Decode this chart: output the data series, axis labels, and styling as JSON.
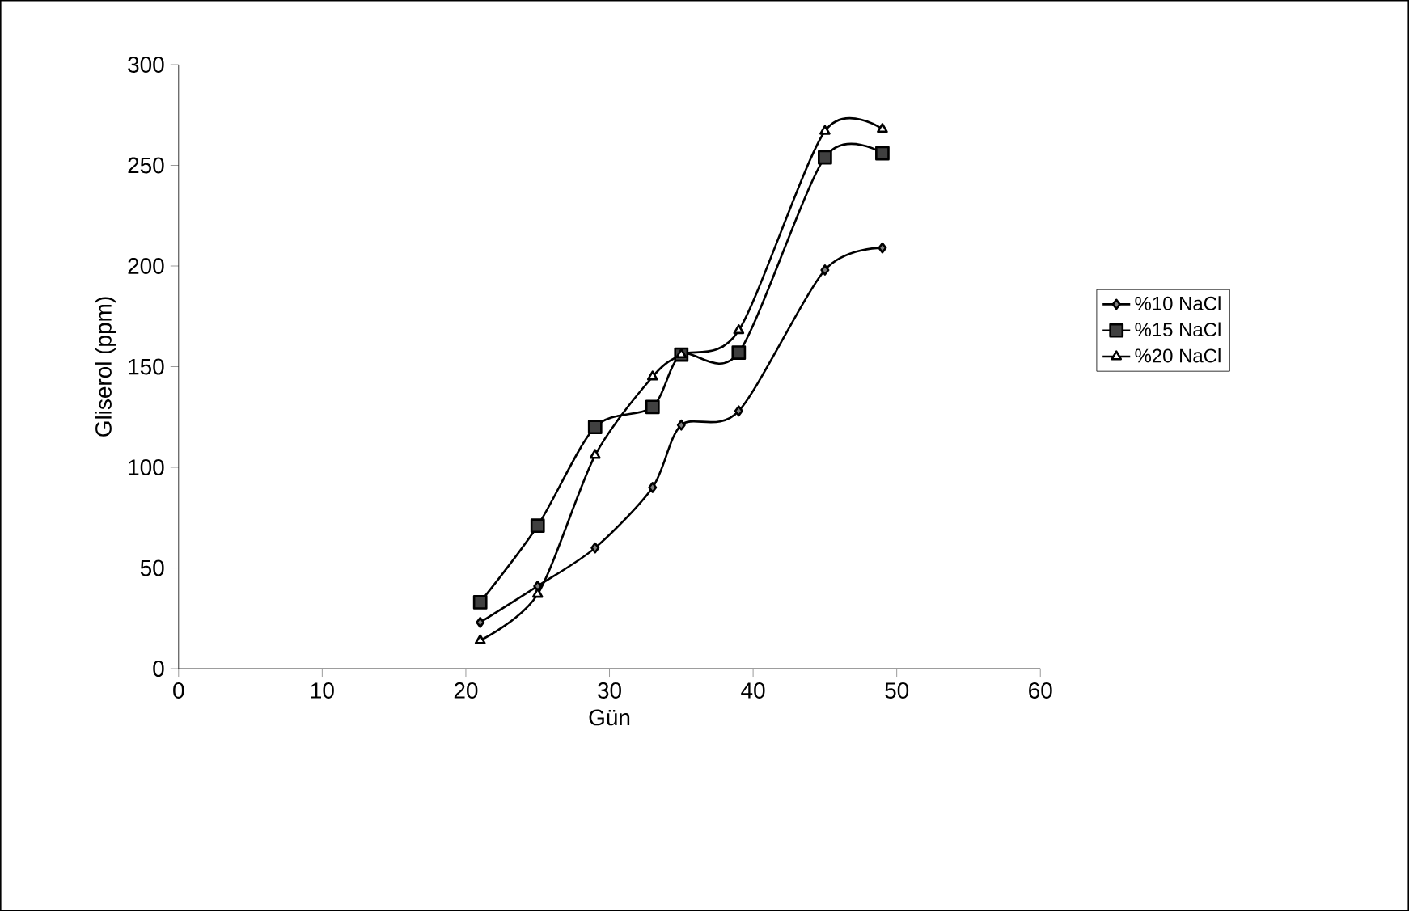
{
  "chart_data": {
    "type": "line",
    "xlabel": "Gün",
    "ylabel": "Gliserol (ppm)",
    "x": [
      21,
      25,
      29,
      33,
      35,
      39,
      45,
      49
    ],
    "series": [
      {
        "name": "%10 NaCl",
        "color": "#000000",
        "marker": "diamond",
        "values": [
          23,
          41,
          60,
          90,
          121,
          128,
          198,
          209
        ]
      },
      {
        "name": "%15 NaCl",
        "color": "#000000",
        "marker": "square",
        "values": [
          33,
          71,
          120,
          130,
          156,
          157,
          254,
          256
        ]
      },
      {
        "name": "%20 NaCl",
        "color": "#000000",
        "marker": "triangle",
        "values": [
          14,
          37,
          106,
          145,
          156,
          168,
          267,
          268
        ]
      }
    ],
    "xlim": [
      0,
      60
    ],
    "xticks": [
      0,
      10,
      20,
      30,
      40,
      50,
      60
    ],
    "ylim": [
      0,
      300
    ],
    "yticks": [
      0,
      50,
      100,
      150,
      200,
      250,
      300
    ],
    "grid": false,
    "legend": "right",
    "line_style": "solid"
  }
}
